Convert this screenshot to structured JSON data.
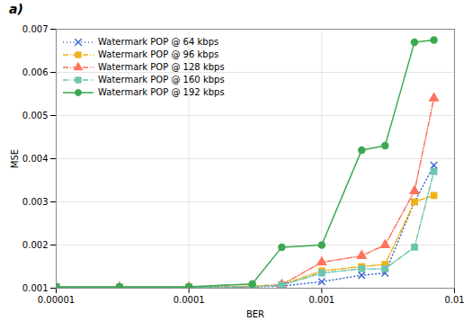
{
  "chart_data": {
    "type": "line",
    "title": "a)",
    "xlabel": "BER",
    "ylabel": "MSE",
    "log": "x",
    "x": [
      1e-05,
      3e-05,
      0.0001,
      0.0003,
      0.0005,
      0.001,
      0.002,
      0.003,
      0.005,
      0.007
    ],
    "xlim": [
      1e-05,
      0.01
    ],
    "xticks": [
      1e-05,
      0.0001,
      0.001,
      0.01
    ],
    "ylim": [
      0.001,
      0.007
    ],
    "yticks": [
      0.001,
      0.002,
      0.003,
      0.004,
      0.005,
      0.006,
      0.007
    ],
    "grid": true,
    "legend": "upper left",
    "series": [
      {
        "name": "Watermark POP @ 64 kbps",
        "marker": "x",
        "line_style": "dotted",
        "values": [
          0.00103,
          0.00102,
          0.00102,
          0.00103,
          0.00105,
          0.00115,
          0.0013,
          0.00135,
          0.003,
          0.00385
        ]
      },
      {
        "name": "Watermark POP @ 96 kbps",
        "marker": "square",
        "line_style": "dashdot",
        "values": [
          0.00102,
          0.00102,
          0.00102,
          0.00105,
          0.00108,
          0.0014,
          0.0015,
          0.00155,
          0.003,
          0.00315
        ]
      },
      {
        "name": "Watermark POP @ 128 kbps",
        "marker": "triangle",
        "line_style": "dashdot",
        "values": [
          0.00102,
          0.00102,
          0.00102,
          0.00103,
          0.00108,
          0.0016,
          0.00175,
          0.002,
          0.00325,
          0.0054
        ]
      },
      {
        "name": "Watermark POP @ 160 kbps",
        "marker": "square",
        "line_style": "dashdot",
        "values": [
          0.00102,
          0.00102,
          0.00102,
          0.00103,
          0.00107,
          0.00135,
          0.00145,
          0.00145,
          0.00195,
          0.0037
        ]
      },
      {
        "name": "Watermark POP @ 192 kbps",
        "marker": "circle",
        "line_style": "solid",
        "values": [
          0.00103,
          0.00103,
          0.00103,
          0.0011,
          0.00195,
          0.002,
          0.0042,
          0.0043,
          0.0067,
          0.00675
        ]
      }
    ]
  }
}
